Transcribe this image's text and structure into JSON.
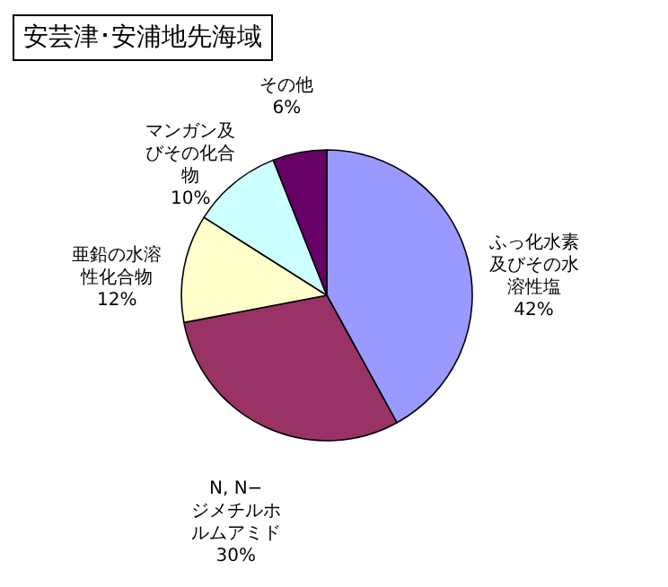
{
  "chart_data": {
    "type": "pie",
    "title": "安芸津･安浦地先海域",
    "categories": [
      "ふっ化水素及びその水溶性塩",
      "N, N−ジメチルホルムアミド",
      "亜鉛の水溶性化合物",
      "マンガン及びその化合物",
      "その他"
    ],
    "values": [
      42,
      30,
      12,
      10,
      6
    ],
    "value_labels": [
      "42%",
      "30%",
      "12%",
      "10%",
      "6%"
    ],
    "colors": [
      "#9999ff",
      "#993366",
      "#ffffcc",
      "#ccffff",
      "#660066"
    ]
  }
}
